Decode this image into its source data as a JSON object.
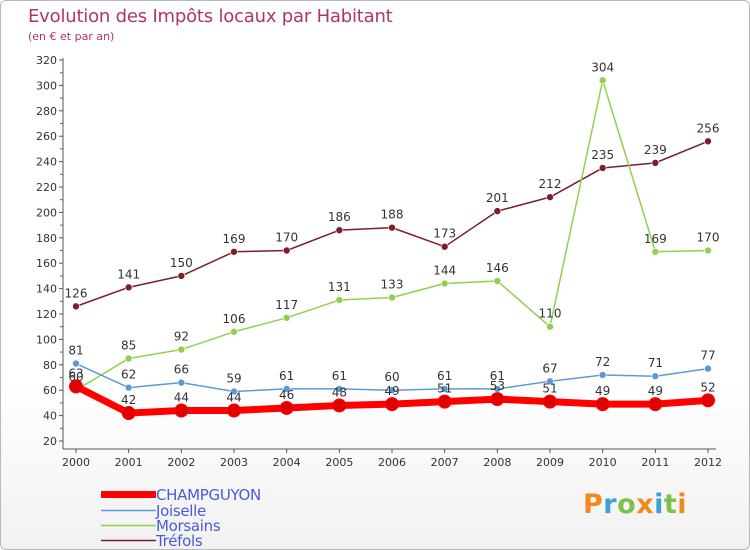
{
  "header": {
    "title": "Evolution des Impôts locaux par Habitant",
    "subtitle": "(en € et par an)"
  },
  "logo": {
    "text": "Proxiti",
    "colors": [
      "#f08a1c",
      "#3aa0d8",
      "#7cc14a",
      "#f08a1c",
      "#3aa0d8",
      "#7cc14a",
      "#f08a1c"
    ]
  },
  "chart_data": {
    "type": "line",
    "title": "Evolution des Impôts locaux par Habitant",
    "subtitle": "(en € et par an)",
    "x": [
      "2000",
      "2001",
      "2002",
      "2003",
      "2004",
      "2005",
      "2006",
      "2007",
      "2008",
      "2009",
      "2010",
      "2011",
      "2012"
    ],
    "ylim": [
      20,
      320
    ],
    "yticks": [
      20,
      40,
      60,
      80,
      100,
      120,
      140,
      160,
      180,
      200,
      220,
      240,
      260,
      280,
      300,
      320
    ],
    "grid": false,
    "legend_position": "bottom-left",
    "series": [
      {
        "name": "CHAMPGUYON",
        "color": "#ff0000",
        "values": [
          63,
          42,
          44,
          44,
          46,
          48,
          49,
          51,
          53,
          51,
          49,
          49,
          52
        ]
      },
      {
        "name": "Joiselle",
        "color": "#5b9bd5",
        "values": [
          81,
          62,
          66,
          59,
          61,
          61,
          60,
          61,
          61,
          67,
          72,
          71,
          77
        ]
      },
      {
        "name": "Morsains",
        "color": "#8fd14f",
        "values": [
          60,
          85,
          92,
          106,
          117,
          131,
          133,
          144,
          146,
          110,
          304,
          169,
          170
        ]
      },
      {
        "name": "Tréfols",
        "color": "#7a1f2b",
        "values": [
          126,
          141,
          150,
          169,
          170,
          186,
          188,
          173,
          201,
          212,
          235,
          239,
          256
        ]
      }
    ]
  }
}
